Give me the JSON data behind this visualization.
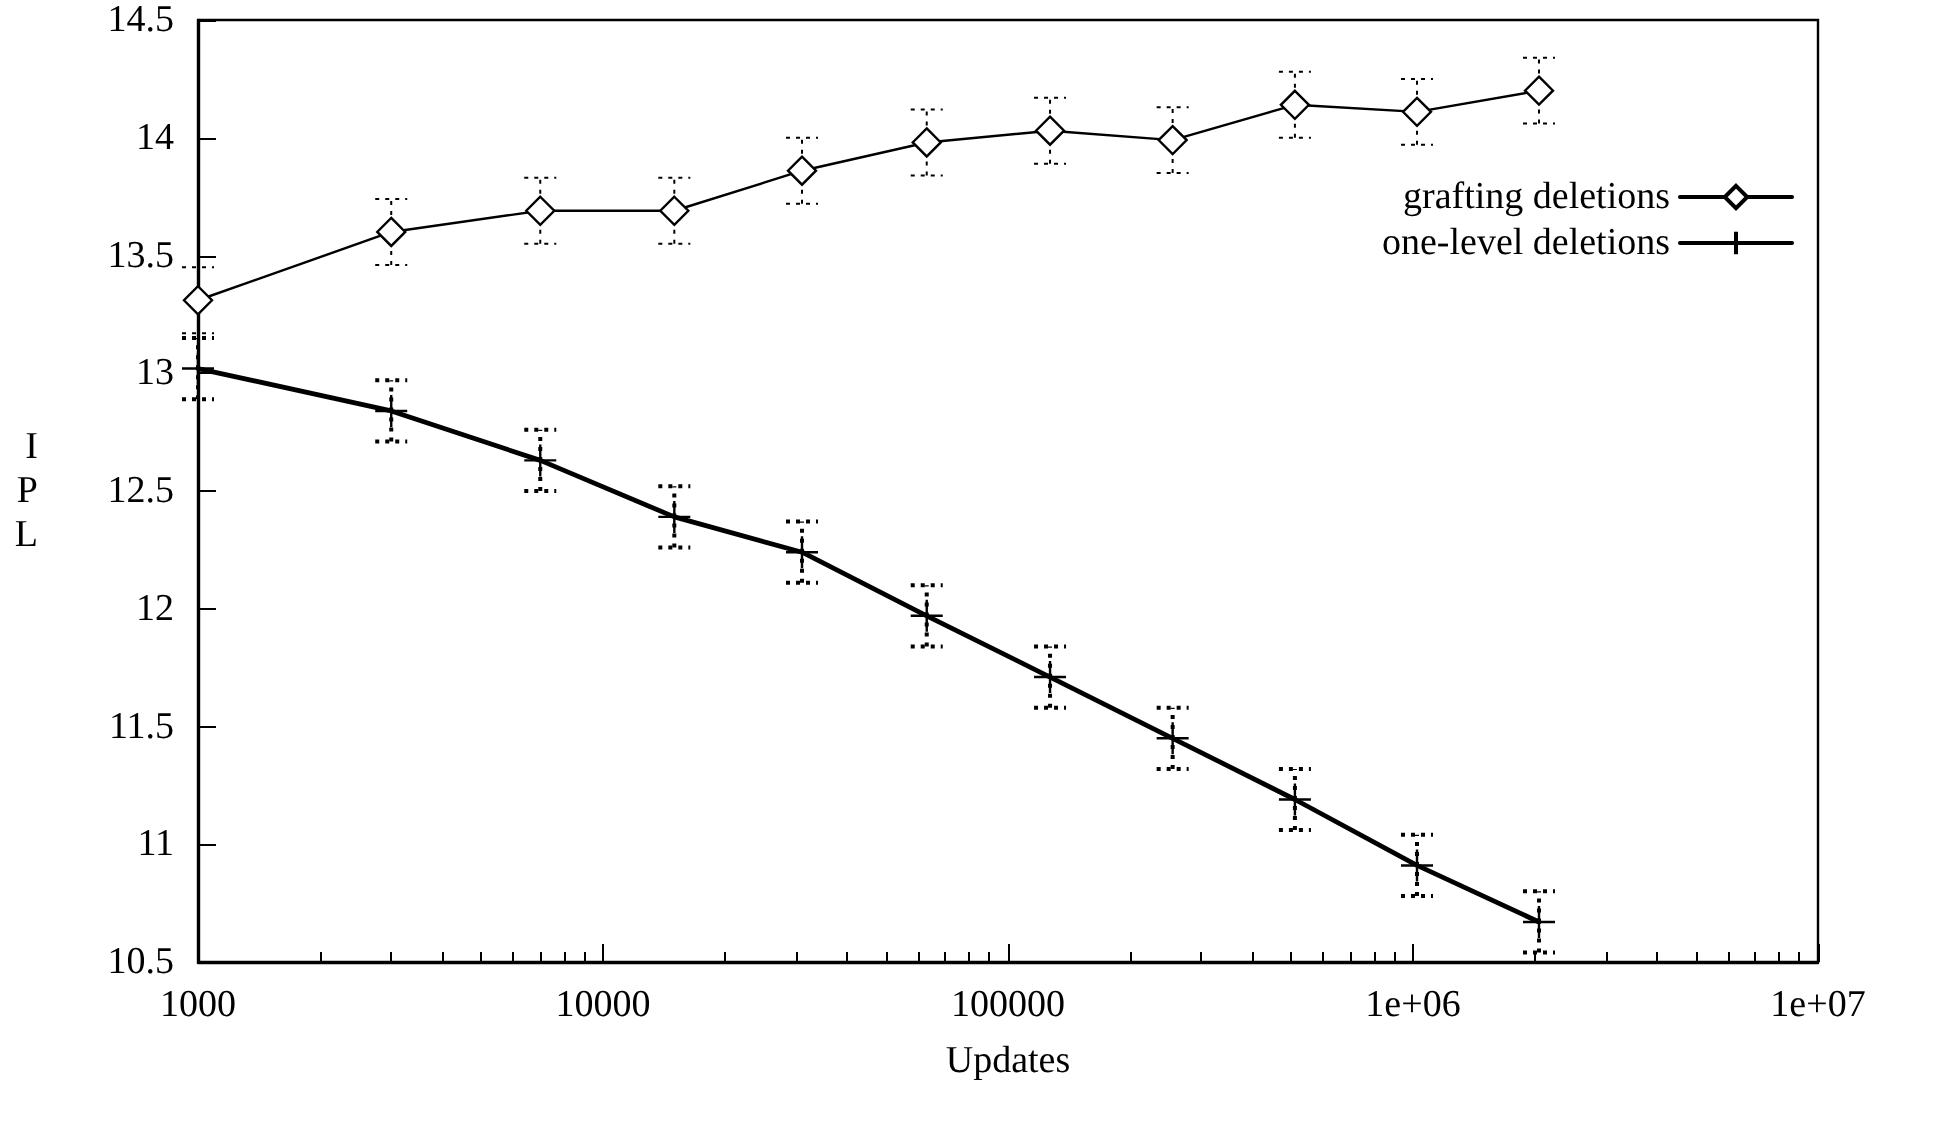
{
  "chart_data": {
    "type": "line",
    "xlabel": "Updates",
    "ylabel": "IPL",
    "log": "x",
    "x": [
      1000,
      3000,
      7000,
      15000,
      31000,
      63000,
      127000,
      255000,
      511000,
      1023000,
      2047000
    ],
    "series": [
      {
        "name": "grafting deletions",
        "color": "#000000",
        "marker": "diamond",
        "values": [
          13.31,
          13.6,
          13.69,
          13.69,
          13.86,
          13.98,
          14.03,
          13.99,
          14.14,
          14.11,
          14.2
        ],
        "errors": [
          0.14,
          0.14,
          0.14,
          0.14,
          0.14,
          0.14,
          0.14,
          0.14,
          0.14,
          0.14,
          0.14
        ]
      },
      {
        "name": "one-level deletions",
        "color": "#000000",
        "marker": "cross",
        "values": [
          13.02,
          12.84,
          12.63,
          12.39,
          12.24,
          11.97,
          11.71,
          11.45,
          11.19,
          10.91,
          10.67
        ],
        "errors": [
          0.13,
          0.13,
          0.13,
          0.13,
          0.13,
          0.13,
          0.13,
          0.13,
          0.13,
          0.13,
          0.13
        ]
      }
    ],
    "xlim": [
      1000,
      10000000
    ],
    "xticks": [
      1000,
      10000,
      100000,
      {
        "value": 1000000,
        "label": "1e+06"
      },
      {
        "value": 10000000,
        "label": "1e+07"
      }
    ],
    "ylim": [
      10.5,
      14.5
    ],
    "yticks": [
      10.5,
      11,
      11.5,
      12,
      12.5,
      13,
      13.5,
      14,
      14.5
    ],
    "legend": "top right",
    "grid": false
  }
}
